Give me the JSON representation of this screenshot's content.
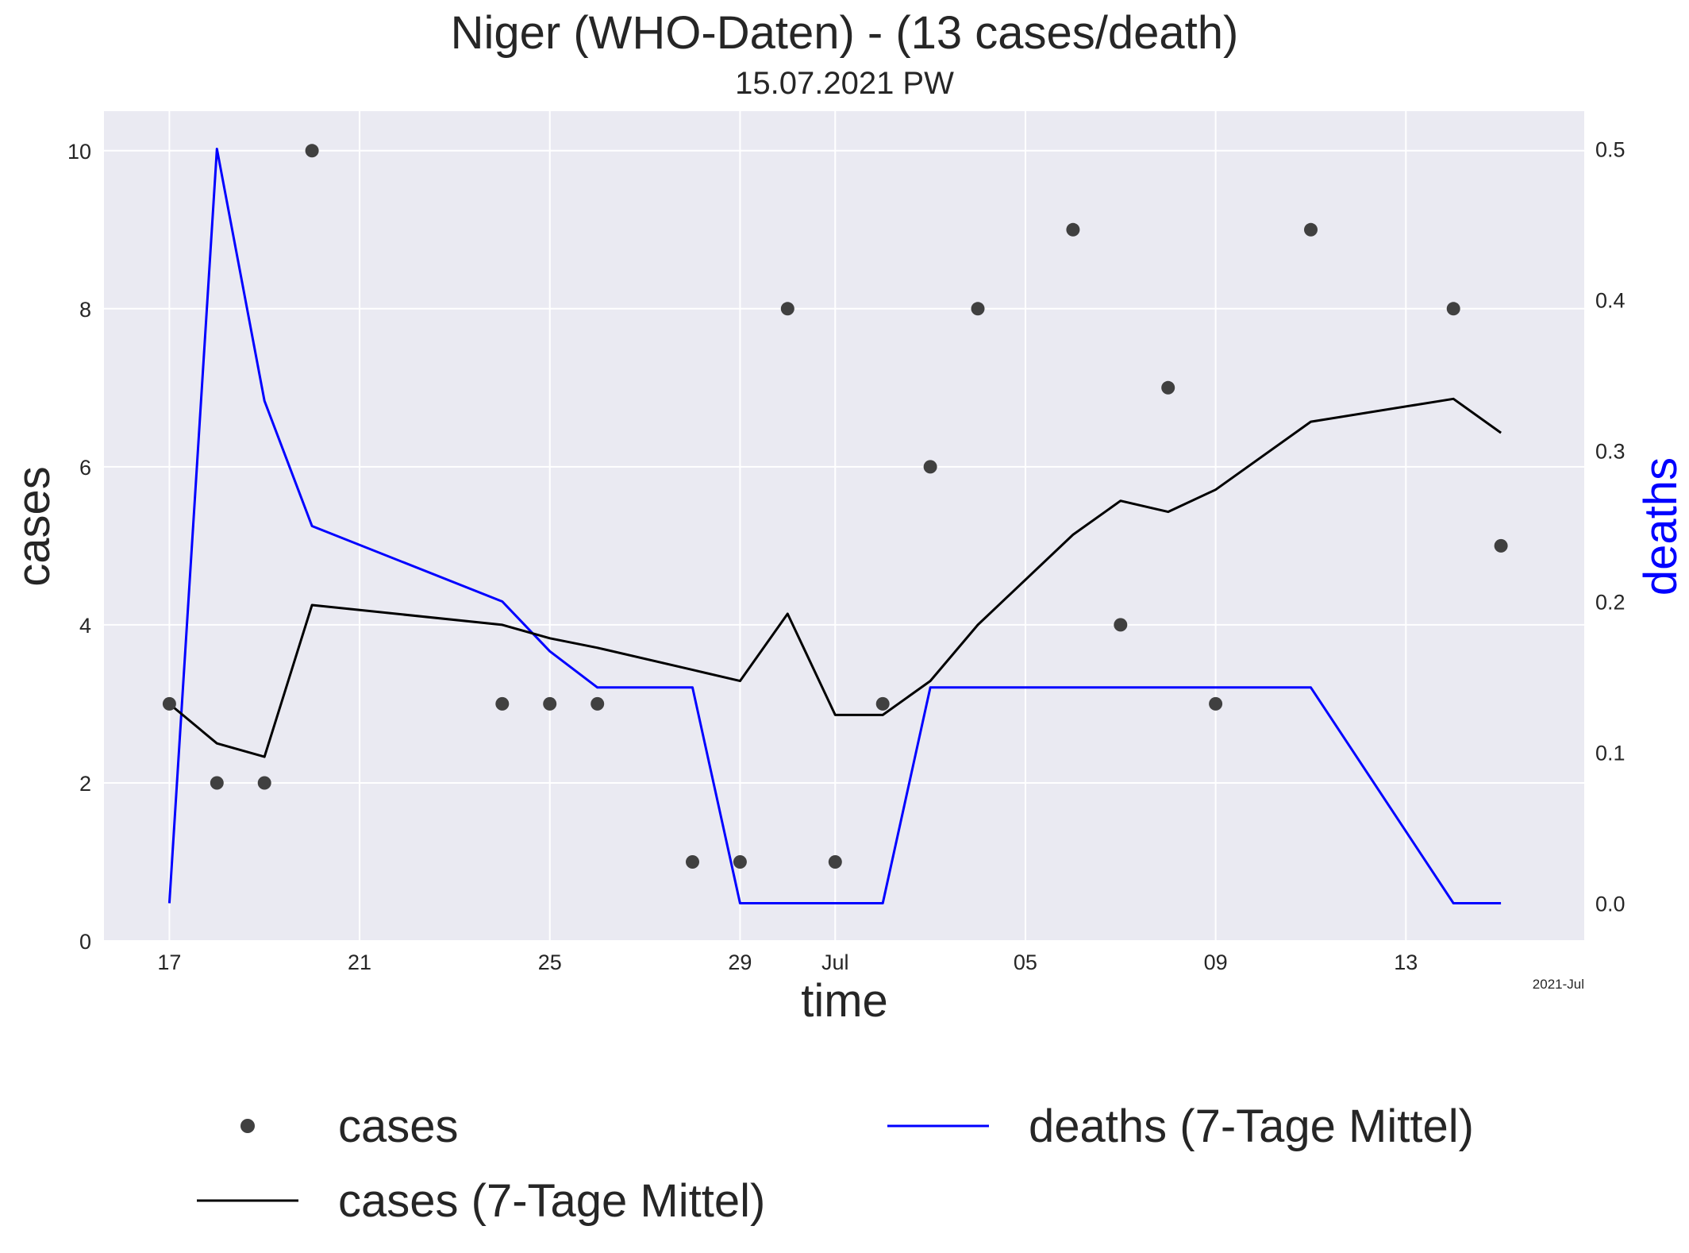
{
  "chart_data": {
    "type": "line",
    "title": "Niger (WHO-Daten) - (13 cases/death)",
    "subtitle": "15.07.2021 PW",
    "xlabel": "time",
    "ylabel": "cases",
    "ylabel_right": "deaths",
    "x_offset_label": "2021-Jul",
    "x_range": [
      "2021-06-15T15:00",
      "2021-07-16T18:00"
    ],
    "ylim": [
      0,
      10.5
    ],
    "ylim_right": [
      -0.025,
      0.525
    ],
    "x_ticks": [
      {
        "date": "2021-06-17",
        "label": "17"
      },
      {
        "date": "2021-06-21",
        "label": "21"
      },
      {
        "date": "2021-06-25",
        "label": "25"
      },
      {
        "date": "2021-06-29",
        "label": "29"
      },
      {
        "date": "2021-07-01",
        "label": "Jul"
      },
      {
        "date": "2021-07-05",
        "label": "05"
      },
      {
        "date": "2021-07-09",
        "label": "09"
      },
      {
        "date": "2021-07-13",
        "label": "13"
      }
    ],
    "y_ticks": [
      "0",
      "2",
      "4",
      "6",
      "8",
      "10"
    ],
    "y_ticks_right": [
      "0.0",
      "0.1",
      "0.2",
      "0.3",
      "0.4",
      "0.5"
    ],
    "grid": true,
    "legend_position": "bottom",
    "colors": {
      "cases": "#404040",
      "cases_avg": "#000000",
      "deaths_avg": "#0000ff",
      "plot_bg": "#eaeaf2",
      "grid": "#ffffff"
    },
    "series": [
      {
        "name": "cases",
        "kind": "scatter",
        "axis": "left",
        "x": [
          "2021-06-17",
          "2021-06-18",
          "2021-06-19",
          "2021-06-20",
          "2021-06-24",
          "2021-06-25",
          "2021-06-26",
          "2021-06-28",
          "2021-06-29",
          "2021-06-30",
          "2021-07-01",
          "2021-07-02",
          "2021-07-03",
          "2021-07-04",
          "2021-07-06",
          "2021-07-07",
          "2021-07-08",
          "2021-07-09",
          "2021-07-11",
          "2021-07-14",
          "2021-07-15"
        ],
        "y": [
          3,
          2,
          2,
          10,
          3,
          3,
          3,
          1,
          1,
          8,
          1,
          3,
          6,
          8,
          9,
          4,
          7,
          3,
          9,
          8,
          5
        ]
      },
      {
        "name": "cases (7-Tage Mittel)",
        "kind": "line",
        "axis": "left",
        "x": [
          "2021-06-17",
          "2021-06-18",
          "2021-06-19",
          "2021-06-20",
          "2021-06-24",
          "2021-06-25",
          "2021-06-26",
          "2021-06-28",
          "2021-06-29",
          "2021-06-30",
          "2021-07-01",
          "2021-07-02",
          "2021-07-03",
          "2021-07-04",
          "2021-07-06",
          "2021-07-07",
          "2021-07-08",
          "2021-07-09",
          "2021-07-11",
          "2021-07-14",
          "2021-07-15"
        ],
        "y": [
          3.0,
          2.5,
          2.33,
          4.25,
          4.0,
          3.83,
          3.71,
          3.43,
          3.29,
          4.14,
          2.86,
          2.86,
          3.29,
          4.0,
          5.14,
          5.57,
          5.43,
          5.71,
          6.57,
          6.86,
          6.43
        ]
      },
      {
        "name": "deaths (7-Tage Mittel)",
        "kind": "line",
        "axis": "right",
        "x": [
          "2021-06-17",
          "2021-06-18",
          "2021-06-19",
          "2021-06-20",
          "2021-06-24",
          "2021-06-25",
          "2021-06-26",
          "2021-06-28",
          "2021-06-29",
          "2021-06-30",
          "2021-07-01",
          "2021-07-02",
          "2021-07-03",
          "2021-07-04",
          "2021-07-06",
          "2021-07-07",
          "2021-07-08",
          "2021-07-09",
          "2021-07-11",
          "2021-07-14",
          "2021-07-15"
        ],
        "y": [
          0.0,
          0.5,
          0.333,
          0.25,
          0.2,
          0.167,
          0.143,
          0.143,
          0.0,
          0.0,
          0.0,
          0.0,
          0.143,
          0.143,
          0.143,
          0.143,
          0.143,
          0.143,
          0.143,
          0.0,
          0.0
        ]
      }
    ]
  }
}
